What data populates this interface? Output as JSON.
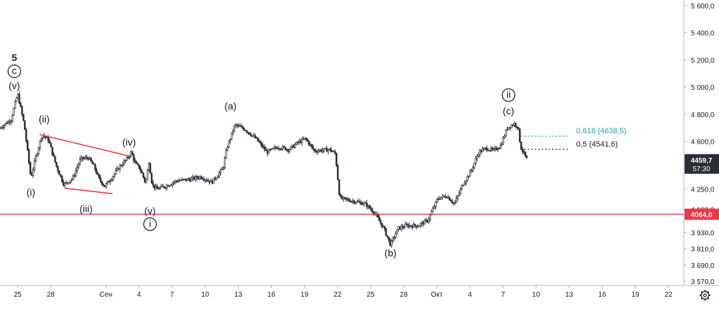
{
  "chart_data": {
    "type": "candlestick",
    "title": "",
    "xlabel": "",
    "ylabel": "",
    "ylim": [
      3540,
      5640
    ],
    "y_ticks": [
      {
        "value": 5600,
        "label": "5 600,0"
      },
      {
        "value": 5400,
        "label": "5 400,0"
      },
      {
        "value": 5200,
        "label": "5 200,0"
      },
      {
        "value": 5000,
        "label": "5 000,0"
      },
      {
        "value": 4800,
        "label": "4 800,0"
      },
      {
        "value": 4600,
        "label": "4 600,0"
      },
      {
        "value": 4250,
        "label": "4 250,0"
      },
      {
        "value": 4100,
        "label": "4 100,0"
      },
      {
        "value": 3930,
        "label": "3 930,0"
      },
      {
        "value": 3810,
        "label": "3 810,0"
      },
      {
        "value": 3690,
        "label": "3 690,0"
      },
      {
        "value": 3570,
        "label": "3 570,0"
      }
    ],
    "x_ticks": [
      {
        "day": -8,
        "label": "25"
      },
      {
        "day": -5,
        "label": "28"
      },
      {
        "day": 0,
        "label": "Сен"
      },
      {
        "day": 3,
        "label": "4"
      },
      {
        "day": 6,
        "label": "7"
      },
      {
        "day": 9,
        "label": "10"
      },
      {
        "day": 12,
        "label": "13"
      },
      {
        "day": 15,
        "label": "16"
      },
      {
        "day": 18,
        "label": "19"
      },
      {
        "day": 21,
        "label": "22"
      },
      {
        "day": 24,
        "label": "25"
      },
      {
        "day": 27,
        "label": "28"
      },
      {
        "day": 30,
        "label": "Окт"
      },
      {
        "day": 33,
        "label": "4"
      },
      {
        "day": 36,
        "label": "7"
      },
      {
        "day": 39,
        "label": "10"
      },
      {
        "day": 42,
        "label": "13"
      },
      {
        "day": 45,
        "label": "16"
      },
      {
        "day": 48,
        "label": "19"
      },
      {
        "day": 51,
        "label": "22"
      }
    ],
    "xlim": [
      -9.6,
      52.4
    ],
    "price_path": [
      [
        -9.6,
        4700
      ],
      [
        -8.6,
        4760
      ],
      [
        -8.0,
        4950
      ],
      [
        -7.4,
        4720
      ],
      [
        -6.8,
        4330
      ],
      [
        -6.4,
        4470
      ],
      [
        -5.8,
        4650
      ],
      [
        -5.2,
        4610
      ],
      [
        -4.5,
        4420
      ],
      [
        -3.8,
        4280
      ],
      [
        -3.0,
        4330
      ],
      [
        -2.3,
        4470
      ],
      [
        -1.6,
        4480
      ],
      [
        -1.1,
        4420
      ],
      [
        -0.6,
        4320
      ],
      [
        -0.1,
        4270
      ],
      [
        0.5,
        4330
      ],
      [
        1.2,
        4410
      ],
      [
        1.9,
        4470
      ],
      [
        2.3,
        4520
      ],
      [
        2.7,
        4430
      ],
      [
        3.0,
        4410
      ],
      [
        3.3,
        4360
      ],
      [
        3.6,
        4290
      ],
      [
        3.9,
        4450
      ],
      [
        4.2,
        4280
      ],
      [
        4.6,
        4250
      ],
      [
        5.4,
        4270
      ],
      [
        6.4,
        4310
      ],
      [
        7.6,
        4320
      ],
      [
        8.6,
        4340
      ],
      [
        9.6,
        4300
      ],
      [
        10.6,
        4400
      ],
      [
        11.0,
        4560
      ],
      [
        11.7,
        4720
      ],
      [
        12.6,
        4690
      ],
      [
        13.6,
        4620
      ],
      [
        14.6,
        4520
      ],
      [
        15.6,
        4560
      ],
      [
        16.6,
        4540
      ],
      [
        17.4,
        4590
      ],
      [
        18.1,
        4620
      ],
      [
        18.9,
        4530
      ],
      [
        20.3,
        4540
      ],
      [
        20.8,
        4510
      ],
      [
        21.2,
        4180
      ],
      [
        22.5,
        4160
      ],
      [
        23.5,
        4140
      ],
      [
        24.3,
        4080
      ],
      [
        25.2,
        3960
      ],
      [
        25.8,
        3840
      ],
      [
        26.5,
        3960
      ],
      [
        27.2,
        3980
      ],
      [
        28.3,
        3980
      ],
      [
        29.2,
        4020
      ],
      [
        30.1,
        4180
      ],
      [
        30.9,
        4200
      ],
      [
        31.6,
        4140
      ],
      [
        32.4,
        4290
      ],
      [
        33.1,
        4380
      ],
      [
        33.8,
        4520
      ],
      [
        34.5,
        4550
      ],
      [
        35.1,
        4530
      ],
      [
        35.8,
        4570
      ],
      [
        36.4,
        4700
      ],
      [
        37.0,
        4730
      ],
      [
        37.35,
        4710
      ],
      [
        37.6,
        4560
      ],
      [
        38.2,
        4459.7
      ]
    ],
    "trendlines": [
      {
        "points": [
          [
            -6.0,
            4650
          ],
          [
            2.2,
            4490
          ]
        ]
      },
      {
        "points": [
          [
            -3.7,
            4255
          ],
          [
            0.6,
            4215
          ]
        ]
      }
    ],
    "support_level": {
      "value": 4064.0,
      "label": "4064,0"
    },
    "last_price": {
      "value": 4459.7,
      "label": "4459,7",
      "countdown": "57:30"
    },
    "fib_levels": [
      {
        "ratio_label": "0,618 (4638,5)",
        "value": 4638.5,
        "x_start": 37.6,
        "x_end": 42.0,
        "color": "#26a69a"
      },
      {
        "ratio_label": "0,5 (4541,6)",
        "value": 4541.6,
        "x_start": 37.6,
        "x_end": 42.0,
        "color": "#131722"
      }
    ],
    "wave_labels": [
      {
        "text": "5",
        "day": -8.3,
        "price": 5190,
        "style": "bold"
      },
      {
        "text": "c",
        "day": -8.3,
        "price": 5095,
        "style": "circle"
      },
      {
        "text": "(v)",
        "day": -8.3,
        "price": 4985,
        "style": "plain"
      },
      {
        "text": "(ii)",
        "day": -5.6,
        "price": 4740,
        "style": "plain"
      },
      {
        "text": "(i)",
        "day": -6.8,
        "price": 4200,
        "style": "plain"
      },
      {
        "text": "(iii)",
        "day": -1.8,
        "price": 4080,
        "style": "plain"
      },
      {
        "text": "(iv)",
        "day": 2.1,
        "price": 4570,
        "style": "plain"
      },
      {
        "text": "(v)",
        "day": 4.0,
        "price": 4065,
        "style": "plain"
      },
      {
        "text": "i",
        "day": 4.0,
        "price": 3970,
        "style": "circle"
      },
      {
        "text": "(a)",
        "day": 11.3,
        "price": 4835,
        "style": "plain"
      },
      {
        "text": "(b)",
        "day": 25.8,
        "price": 3755,
        "style": "plain"
      },
      {
        "text": "ii",
        "day": 36.5,
        "price": 4920,
        "style": "circle"
      },
      {
        "text": "(c)",
        "day": 36.5,
        "price": 4800,
        "style": "plain"
      }
    ],
    "colors": {
      "up": "#26a69a",
      "down": "#131722",
      "candle": "#2a2e39",
      "trendline": "#f23645",
      "support": "#f23645",
      "last_price_bg": "#2a2e39",
      "last_price_text": "#ffffff",
      "axis_text": "#131722",
      "axis_line": "#b2b5be"
    },
    "legend": "none",
    "grid": false
  },
  "toolbar": {
    "settings_icon": "gear-icon"
  }
}
